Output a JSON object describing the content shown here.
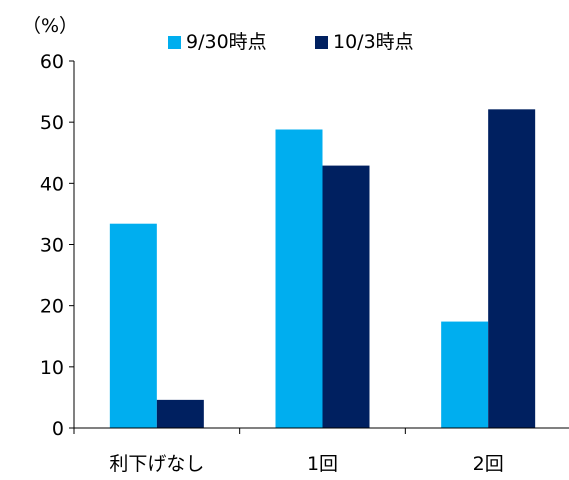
{
  "chart_data": {
    "type": "bar",
    "unit_label": "（%）",
    "categories": [
      "利下げなし",
      "1回",
      "2回"
    ],
    "series": [
      {
        "name": "9/30時点",
        "color": "#00aeef",
        "values": [
          33.4,
          48.8,
          17.4
        ]
      },
      {
        "name": "10/3時点",
        "color": "#002060",
        "values": [
          4.6,
          42.9,
          52.1
        ]
      }
    ],
    "ylim": [
      0,
      60
    ],
    "yticks": [
      0,
      10,
      20,
      30,
      40,
      50,
      60
    ],
    "grid": false,
    "legend_position": "top"
  }
}
